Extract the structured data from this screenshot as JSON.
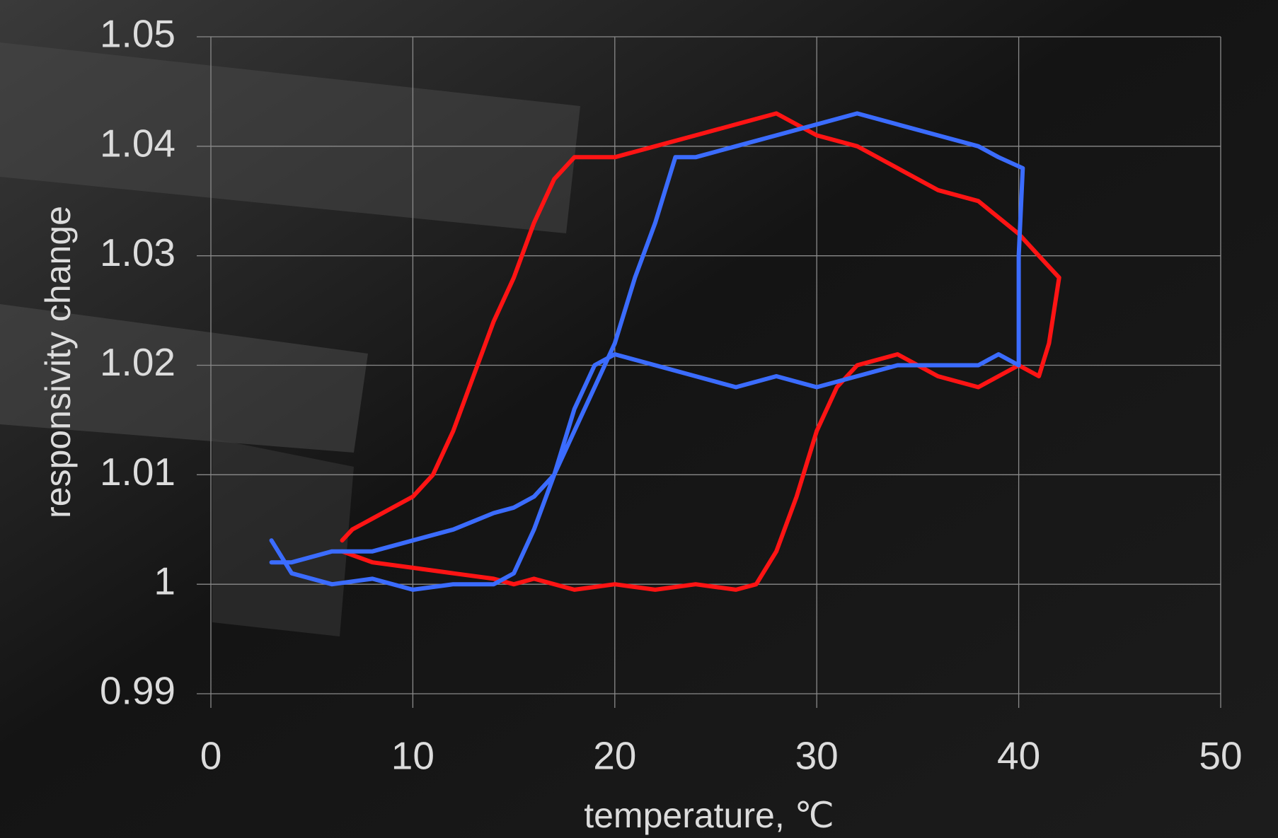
{
  "chart_data": {
    "type": "line",
    "x_label": "temperature, ℃",
    "y_label": "responsivity change",
    "xlim": [
      0,
      50
    ],
    "xticks": [
      0,
      10,
      20,
      30,
      40,
      50
    ],
    "ylim": [
      0.99,
      1.05
    ],
    "yticks": [
      0.99,
      1,
      1.01,
      1.02,
      1.03,
      1.04,
      1.05
    ],
    "grid": true,
    "series": [
      {
        "color": "#ff1414",
        "x": [
          6.5,
          8,
          10,
          12,
          14,
          15,
          16,
          18,
          20,
          22,
          24,
          26,
          27,
          28,
          29,
          30,
          31,
          32,
          34,
          36,
          38,
          40,
          41,
          41.5,
          42,
          41,
          40,
          38,
          36,
          34,
          32,
          30,
          28,
          26,
          24,
          22,
          20,
          18,
          17,
          16,
          15,
          14,
          13,
          12,
          11,
          10,
          9,
          8,
          7,
          6.5
        ],
        "values": [
          1.003,
          1.002,
          1.0015,
          1.001,
          1.0005,
          1.0,
          1.0005,
          0.9995,
          1.0,
          0.9995,
          1.0,
          0.9995,
          1.0,
          1.003,
          1.008,
          1.014,
          1.018,
          1.02,
          1.021,
          1.019,
          1.018,
          1.02,
          1.019,
          1.022,
          1.028,
          1.03,
          1.032,
          1.035,
          1.036,
          1.038,
          1.04,
          1.041,
          1.043,
          1.042,
          1.041,
          1.04,
          1.039,
          1.039,
          1.037,
          1.033,
          1.028,
          1.024,
          1.019,
          1.014,
          1.01,
          1.008,
          1.007,
          1.006,
          1.005,
          1.004
        ]
      },
      {
        "color": "#3b6cff",
        "x": [
          3,
          4,
          6,
          8,
          10,
          12,
          14,
          15,
          16,
          17,
          18,
          19,
          20,
          22,
          24,
          26,
          28,
          30,
          32,
          34,
          36,
          38,
          39,
          40,
          40,
          40.2,
          39,
          38,
          36,
          34,
          32,
          30,
          28,
          26,
          24,
          23,
          22.5,
          22,
          21,
          20,
          19,
          18,
          17,
          16,
          15,
          14,
          12,
          10,
          8,
          6,
          4,
          3
        ],
        "values": [
          1.004,
          1.001,
          1.0,
          1.0005,
          0.9995,
          1.0,
          1.0,
          1.001,
          1.005,
          1.01,
          1.016,
          1.02,
          1.021,
          1.02,
          1.019,
          1.018,
          1.019,
          1.018,
          1.019,
          1.02,
          1.02,
          1.02,
          1.021,
          1.02,
          1.03,
          1.038,
          1.039,
          1.04,
          1.041,
          1.042,
          1.043,
          1.042,
          1.041,
          1.04,
          1.039,
          1.039,
          1.036,
          1.033,
          1.028,
          1.022,
          1.018,
          1.014,
          1.01,
          1.008,
          1.007,
          1.0065,
          1.005,
          1.004,
          1.003,
          1.003,
          1.002,
          1.002
        ]
      }
    ]
  }
}
